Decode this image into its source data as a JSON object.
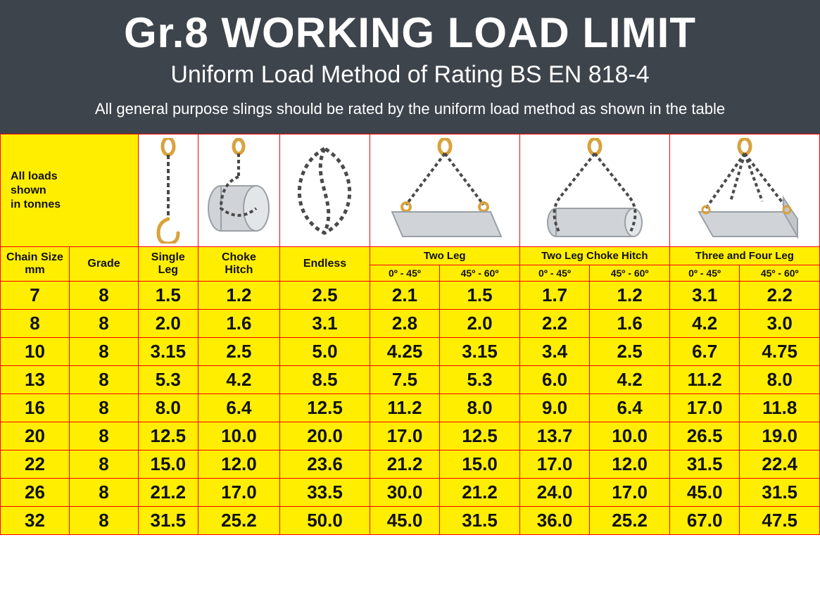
{
  "header": {
    "title": "Gr.8 WORKING LOAD LIMIT",
    "subtitle": "Uniform Load Method of Rating BS EN 818-4",
    "note": "All general purpose slings should be rated by the uniform load method as shown in the table"
  },
  "legend": "All loads\nshown\nin tonnes",
  "column_headers": {
    "chain_size": "Chain Size\nmm",
    "grade": "Grade",
    "single_leg": "Single\nLeg",
    "choke_hitch": "Choke\nHitch",
    "endless": "Endless",
    "two_leg": "Two Leg",
    "two_leg_choke": "Two Leg Choke Hitch",
    "three_four": "Three and Four Leg",
    "ang_a": "0º - 45º",
    "ang_b": "45º - 60º"
  },
  "icons": {
    "single_leg": "single-leg-chain",
    "choke_hitch": "choke-hitch-drum",
    "endless": "endless-chain-loop",
    "two_leg": "two-leg-sling",
    "two_leg_choke": "two-leg-choke-bundle",
    "three_four": "four-leg-sling"
  },
  "colors": {
    "header_bg": "#3e444c",
    "header_text": "#ffffff",
    "table_bg": "#ffee00",
    "border": "#ff0000",
    "text": "#111111",
    "chain_dark": "#4a4a4a",
    "fitting_gold": "#d9a23d",
    "load_grey": "#d0d4d8",
    "load_outline": "#9aa0a6"
  },
  "rows": [
    {
      "size": "7",
      "grade": "8",
      "v": [
        "1.5",
        "1.2",
        "2.5",
        "2.1",
        "1.5",
        "1.7",
        "1.2",
        "3.1",
        "2.2"
      ]
    },
    {
      "size": "8",
      "grade": "8",
      "v": [
        "2.0",
        "1.6",
        "3.1",
        "2.8",
        "2.0",
        "2.2",
        "1.6",
        "4.2",
        "3.0"
      ]
    },
    {
      "size": "10",
      "grade": "8",
      "v": [
        "3.15",
        "2.5",
        "5.0",
        "4.25",
        "3.15",
        "3.4",
        "2.5",
        "6.7",
        "4.75"
      ]
    },
    {
      "size": "13",
      "grade": "8",
      "v": [
        "5.3",
        "4.2",
        "8.5",
        "7.5",
        "5.3",
        "6.0",
        "4.2",
        "11.2",
        "8.0"
      ]
    },
    {
      "size": "16",
      "grade": "8",
      "v": [
        "8.0",
        "6.4",
        "12.5",
        "11.2",
        "8.0",
        "9.0",
        "6.4",
        "17.0",
        "11.8"
      ]
    },
    {
      "size": "20",
      "grade": "8",
      "v": [
        "12.5",
        "10.0",
        "20.0",
        "17.0",
        "12.5",
        "13.7",
        "10.0",
        "26.5",
        "19.0"
      ]
    },
    {
      "size": "22",
      "grade": "8",
      "v": [
        "15.0",
        "12.0",
        "23.6",
        "21.2",
        "15.0",
        "17.0",
        "12.0",
        "31.5",
        "22.4"
      ]
    },
    {
      "size": "26",
      "grade": "8",
      "v": [
        "21.2",
        "17.0",
        "33.5",
        "30.0",
        "21.2",
        "24.0",
        "17.0",
        "45.0",
        "31.5"
      ]
    },
    {
      "size": "32",
      "grade": "8",
      "v": [
        "31.5",
        "25.2",
        "50.0",
        "45.0",
        "31.5",
        "36.0",
        "25.2",
        "67.0",
        "47.5"
      ]
    }
  ]
}
